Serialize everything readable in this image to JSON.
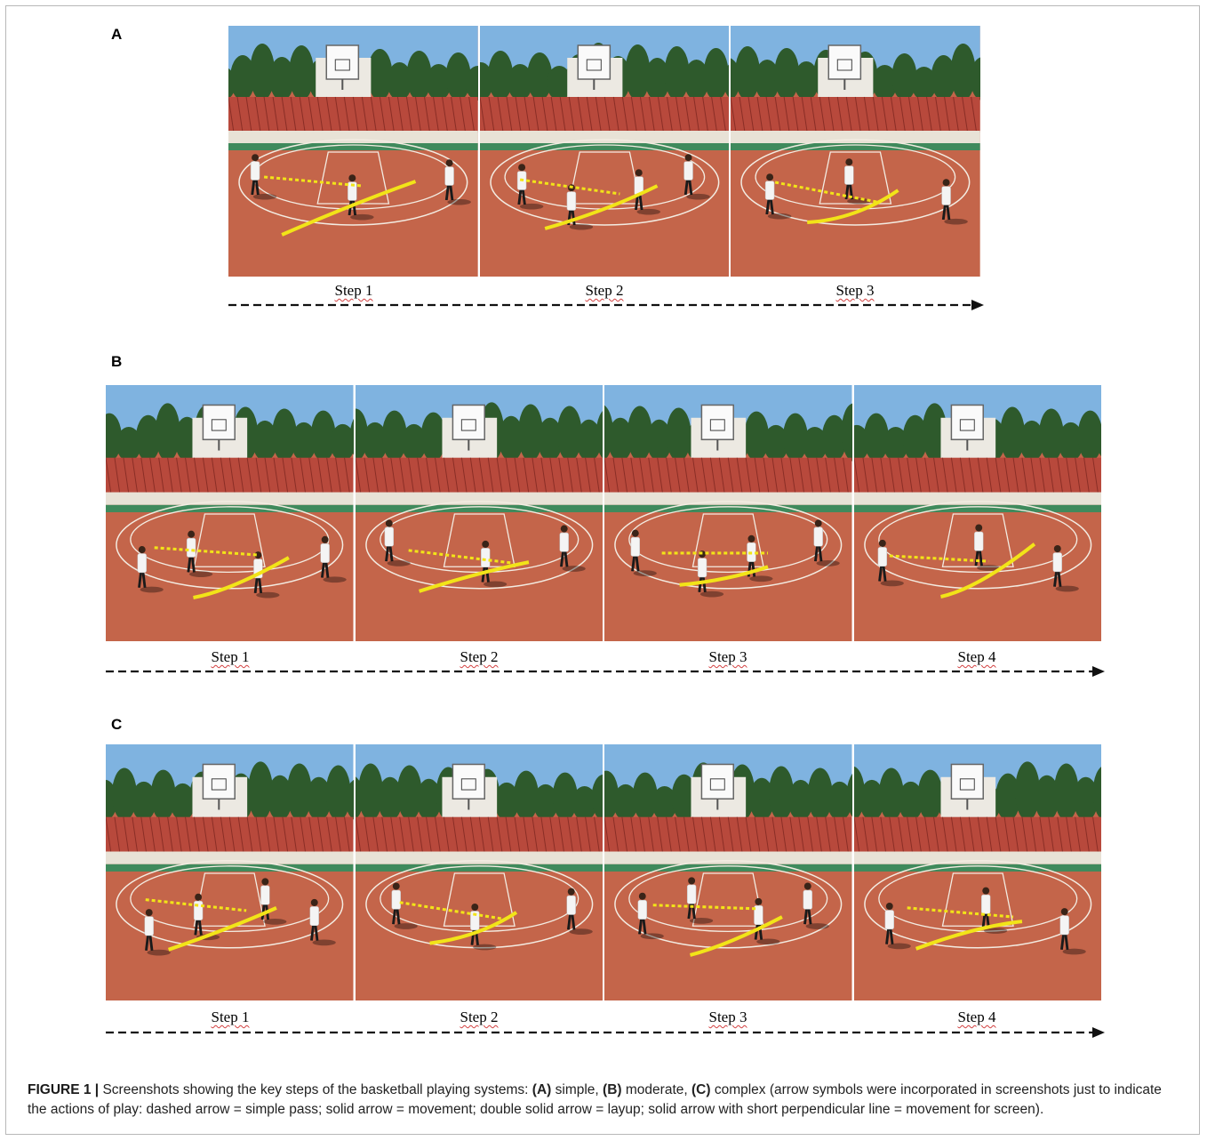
{
  "panels": [
    {
      "label": "A",
      "steps": [
        "Step 1",
        "Step 2",
        "Step 3"
      ]
    },
    {
      "label": "B",
      "steps": [
        "Step 1",
        "Step 2",
        "Step 3",
        "Step 4"
      ]
    },
    {
      "label": "C",
      "steps": [
        "Step 1",
        "Step 2",
        "Step 3",
        "Step 4"
      ]
    }
  ],
  "colors": {
    "sky": "#7fb3e0",
    "trees": "#2e5a2c",
    "fence": "#b8493c",
    "court": "#c4654a",
    "court_green": "#3f8a5c",
    "court_line": "#f3ece2",
    "arrow": "#f2e418"
  },
  "caption": {
    "figure": "FIGURE 1 |",
    "text_1": " Screenshots showing the key steps of the basketball playing systems: ",
    "a": "(A)",
    "text_2": " simple, ",
    "b": "(B)",
    "text_3": " moderate, ",
    "c": "(C)",
    "text_4": " complex (arrow symbols were incorporated in screenshots just to indicate the actions of play: dashed arrow = simple pass; solid arrow = movement; double solid arrow = layup; solid arrow with short perpendicular line = movement for screen)."
  }
}
